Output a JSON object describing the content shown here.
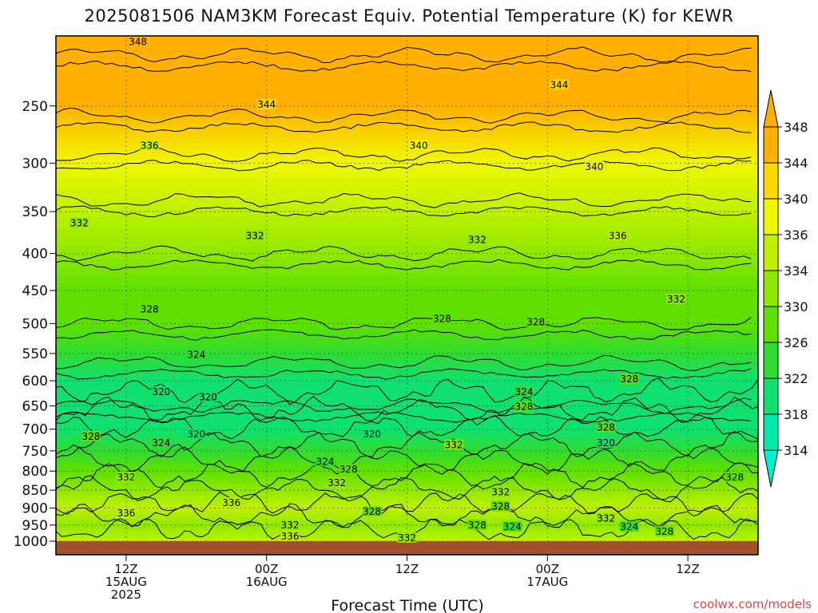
{
  "title": "2025081506 NAM3KM Forecast Equiv. Potential Temperature (K) for KEWR",
  "credit": "coolwx.com/models",
  "chart_data": {
    "type": "heatmap",
    "title": "2025081506 NAM3KM Forecast Equiv. Potential Temperature (K) for KEWR",
    "xlabel": "Forecast Time (UTC)",
    "ylabel": "",
    "units": "K",
    "y_axis": {
      "scale": "log-pressure",
      "inverted": true,
      "range": [
        1000,
        200
      ],
      "ticks": [
        250,
        300,
        350,
        400,
        450,
        500,
        550,
        600,
        650,
        700,
        750,
        800,
        850,
        900,
        950,
        1000
      ]
    },
    "x_axis": {
      "range_hours": [
        0,
        60
      ],
      "ticks": [
        {
          "hour": 6,
          "lines": [
            "12Z",
            "15AUG",
            "2025"
          ]
        },
        {
          "hour": 18,
          "lines": [
            "00Z",
            "16AUG"
          ]
        },
        {
          "hour": 30,
          "lines": [
            "12Z"
          ]
        },
        {
          "hour": 42,
          "lines": [
            "00Z",
            "17AUG"
          ]
        },
        {
          "hour": 54,
          "lines": [
            "12Z"
          ]
        }
      ]
    },
    "grid": true,
    "colorbar": {
      "levels": [
        314,
        318,
        322,
        326,
        330,
        334,
        336,
        340,
        344,
        348
      ],
      "colors": [
        "#00f0d0",
        "#00e8a8",
        "#10e070",
        "#30dc30",
        "#60e000",
        "#90e800",
        "#c0f000",
        "#f0f800",
        "#ffd800",
        "#ffb000"
      ],
      "extend": "both",
      "placement": "right"
    },
    "contour_levels": [
      316,
      320,
      324,
      328,
      332,
      336,
      340,
      344,
      348
    ],
    "surface_color": "#a0522d",
    "profile": [
      {
        "p": 200,
        "theta_e": 349
      },
      {
        "p": 250,
        "theta_e": 345
      },
      {
        "p": 300,
        "theta_e": 339
      },
      {
        "p": 350,
        "theta_e": 335
      },
      {
        "p": 400,
        "theta_e": 332
      },
      {
        "p": 450,
        "theta_e": 330
      },
      {
        "p": 500,
        "theta_e": 328
      },
      {
        "p": 550,
        "theta_e": 325
      },
      {
        "p": 600,
        "theta_e": 322
      },
      {
        "p": 650,
        "theta_e": 320
      },
      {
        "p": 700,
        "theta_e": 321
      },
      {
        "p": 750,
        "theta_e": 324
      },
      {
        "p": 800,
        "theta_e": 328
      },
      {
        "p": 850,
        "theta_e": 332
      },
      {
        "p": 900,
        "theta_e": 335
      },
      {
        "p": 950,
        "theta_e": 334
      },
      {
        "p": 1000,
        "theta_e": 336
      }
    ],
    "contour_labels": [
      {
        "text": "348",
        "hour": 7,
        "p": 205
      },
      {
        "text": "344",
        "hour": 18,
        "p": 250
      },
      {
        "text": "344",
        "hour": 43,
        "p": 235
      },
      {
        "text": "336",
        "hour": 8,
        "p": 285
      },
      {
        "text": "340",
        "hour": 31,
        "p": 285
      },
      {
        "text": "340",
        "hour": 46,
        "p": 305
      },
      {
        "text": "332",
        "hour": 2,
        "p": 365
      },
      {
        "text": "332",
        "hour": 17,
        "p": 380
      },
      {
        "text": "332",
        "hour": 36,
        "p": 385
      },
      {
        "text": "336",
        "hour": 48,
        "p": 380
      },
      {
        "text": "332",
        "hour": 53,
        "p": 465
      },
      {
        "text": "328",
        "hour": 8,
        "p": 480
      },
      {
        "text": "328",
        "hour": 33,
        "p": 495
      },
      {
        "text": "328",
        "hour": 41,
        "p": 500
      },
      {
        "text": "324",
        "hour": 12,
        "p": 555
      },
      {
        "text": "320",
        "hour": 9,
        "p": 625
      },
      {
        "text": "320",
        "hour": 13,
        "p": 635
      },
      {
        "text": "324",
        "hour": 40,
        "p": 625
      },
      {
        "text": "328",
        "hour": 49,
        "p": 600
      },
      {
        "text": "328",
        "hour": 40,
        "p": 655
      },
      {
        "text": "328",
        "hour": 3,
        "p": 720
      },
      {
        "text": "324",
        "hour": 9,
        "p": 735
      },
      {
        "text": "320",
        "hour": 12,
        "p": 715
      },
      {
        "text": "320",
        "hour": 27,
        "p": 715
      },
      {
        "text": "328",
        "hour": 47,
        "p": 700
      },
      {
        "text": "320",
        "hour": 47,
        "p": 735
      },
      {
        "text": "332",
        "hour": 34,
        "p": 740
      },
      {
        "text": "324",
        "hour": 23,
        "p": 780
      },
      {
        "text": "328",
        "hour": 25,
        "p": 800
      },
      {
        "text": "332",
        "hour": 6,
        "p": 820
      },
      {
        "text": "332",
        "hour": 24,
        "p": 835
      },
      {
        "text": "328",
        "hour": 58,
        "p": 820
      },
      {
        "text": "332",
        "hour": 38,
        "p": 860
      },
      {
        "text": "336",
        "hour": 15,
        "p": 890
      },
      {
        "text": "328",
        "hour": 38,
        "p": 900
      },
      {
        "text": "336",
        "hour": 6,
        "p": 920
      },
      {
        "text": "328",
        "hour": 27,
        "p": 915
      },
      {
        "text": "332",
        "hour": 47,
        "p": 935
      },
      {
        "text": "332",
        "hour": 20,
        "p": 955
      },
      {
        "text": "328",
        "hour": 36,
        "p": 955
      },
      {
        "text": "324",
        "hour": 39,
        "p": 960
      },
      {
        "text": "324",
        "hour": 49,
        "p": 960
      },
      {
        "text": "328",
        "hour": 52,
        "p": 975
      },
      {
        "text": "336",
        "hour": 20,
        "p": 990
      },
      {
        "text": "332",
        "hour": 30,
        "p": 995
      }
    ]
  }
}
